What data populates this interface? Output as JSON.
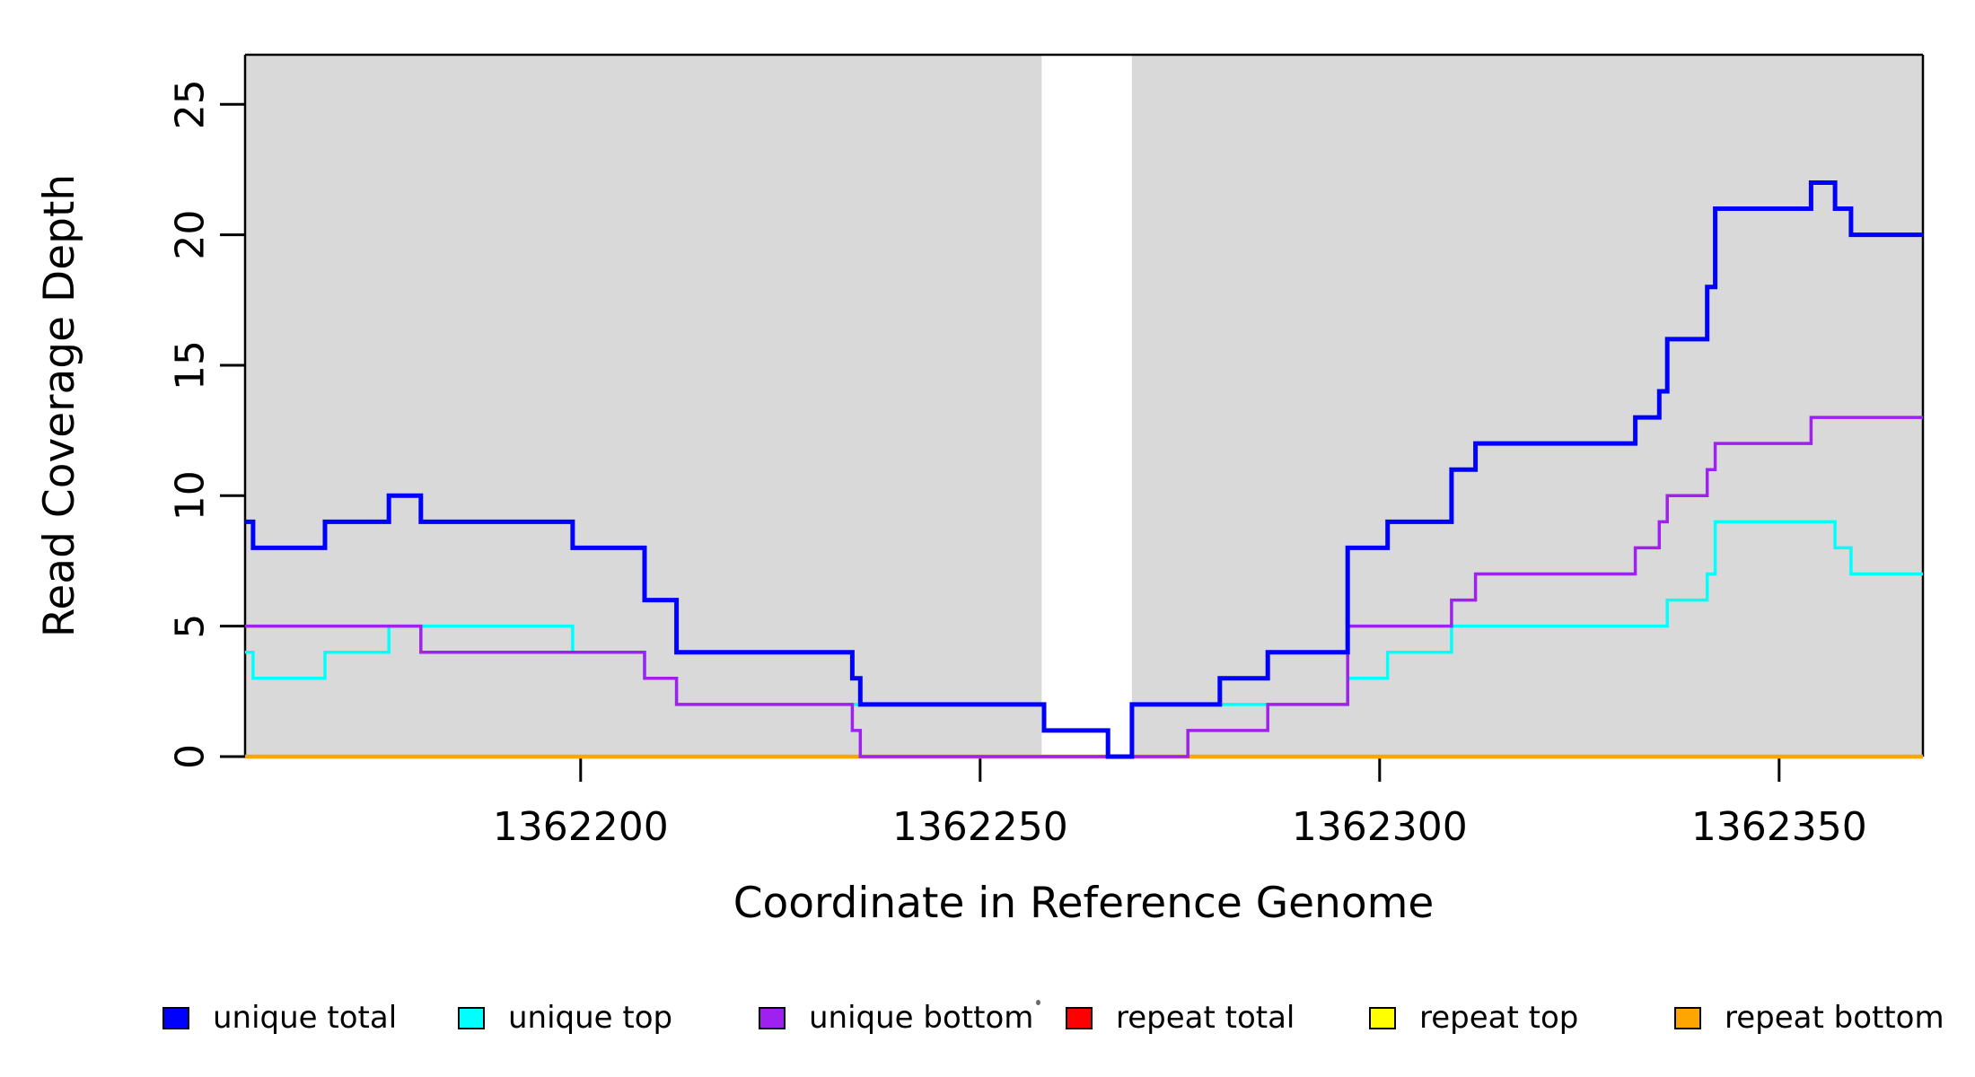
{
  "figure": {
    "background_color": "#FFFFFF",
    "plot_background_color": "#D9D9D9",
    "axis_color": "#000000"
  },
  "chart_data": {
    "type": "line",
    "line_style": "step-after",
    "title": "",
    "xlabel": "Coordinate in Reference Genome",
    "ylabel": "Read Coverage Depth",
    "xlim": [
      1362158,
      1362368
    ],
    "ylim": [
      0,
      26.9
    ],
    "x_ticks": [
      "1362200",
      "1362250",
      "1362300",
      "1362350"
    ],
    "x_tick_values": [
      1362200,
      1362250,
      1362300,
      1362350
    ],
    "y_ticks": [
      "0",
      "5",
      "10",
      "15",
      "20",
      "25"
    ],
    "y_tick_values": [
      0,
      5,
      10,
      15,
      20,
      25
    ],
    "grid": false,
    "legend_position": "bottom",
    "shaded_regions": [
      {
        "name": "unique-mappability-left",
        "x0": 1362158,
        "x1": 1362257.7,
        "color": "#D9D9D9"
      },
      {
        "name": "unique-mappability-right",
        "x0": 1362269,
        "x1": 1362368,
        "color": "#D9D9D9"
      }
    ],
    "unshaded_gap_region": {
      "x0": 1362257.7,
      "x1": 1362269,
      "color": "#FFFFFF"
    },
    "x_end": 1362368,
    "series": [
      {
        "name": "repeat total",
        "color": "#FF0000",
        "width": 3,
        "steps": [
          [
            1362158,
            0
          ]
        ]
      },
      {
        "name": "repeat top",
        "color": "#FFFF00",
        "width": 3,
        "steps": [
          [
            1362158,
            0
          ]
        ]
      },
      {
        "name": "repeat bottom",
        "color": "#FFA500",
        "width": 4.5,
        "steps": [
          [
            1362158,
            0
          ]
        ]
      },
      {
        "name": "unique top",
        "color": "#00FFFF",
        "width": 3.5,
        "steps": [
          [
            1362158,
            4
          ],
          [
            1362159,
            3
          ],
          [
            1362168,
            4
          ],
          [
            1362176,
            5
          ],
          [
            1362199,
            4
          ],
          [
            1362208,
            3
          ],
          [
            1362212,
            2
          ],
          [
            1362258,
            1
          ],
          [
            1362266,
            0
          ],
          [
            1362269,
            2
          ],
          [
            1362296,
            3
          ],
          [
            1362301,
            4
          ],
          [
            1362309,
            5
          ],
          [
            1362336,
            6
          ],
          [
            1362341,
            7
          ],
          [
            1362342,
            9
          ],
          [
            1362357,
            8
          ],
          [
            1362359,
            7
          ]
        ]
      },
      {
        "name": "unique bottom",
        "color": "#A020F0",
        "width": 3.5,
        "steps": [
          [
            1362158,
            5
          ],
          [
            1362180,
            4
          ],
          [
            1362208,
            3
          ],
          [
            1362212,
            2
          ],
          [
            1362234,
            1
          ],
          [
            1362235,
            0
          ],
          [
            1362276,
            1
          ],
          [
            1362286,
            2
          ],
          [
            1362296,
            5
          ],
          [
            1362309,
            6
          ],
          [
            1362312,
            7
          ],
          [
            1362332,
            8
          ],
          [
            1362335,
            9
          ],
          [
            1362336,
            10
          ],
          [
            1362341,
            11
          ],
          [
            1362342,
            12
          ],
          [
            1362354,
            13
          ]
        ]
      },
      {
        "name": "unique total",
        "color": "#0000FF",
        "width": 5,
        "steps": [
          [
            1362158,
            9
          ],
          [
            1362159,
            8
          ],
          [
            1362168,
            9
          ],
          [
            1362176,
            10
          ],
          [
            1362180,
            9
          ],
          [
            1362199,
            8
          ],
          [
            1362208,
            6
          ],
          [
            1362212,
            4
          ],
          [
            1362234,
            3
          ],
          [
            1362235,
            2
          ],
          [
            1362258,
            1
          ],
          [
            1362266,
            0
          ],
          [
            1362269,
            2
          ],
          [
            1362280,
            3
          ],
          [
            1362286,
            4
          ],
          [
            1362296,
            8
          ],
          [
            1362301,
            9
          ],
          [
            1362309,
            11
          ],
          [
            1362312,
            12
          ],
          [
            1362332,
            13
          ],
          [
            1362335,
            14
          ],
          [
            1362336,
            16
          ],
          [
            1362341,
            18
          ],
          [
            1362342,
            21
          ],
          [
            1362354,
            22
          ],
          [
            1362357,
            21
          ],
          [
            1362359,
            20
          ]
        ]
      }
    ]
  },
  "legend": {
    "items": [
      {
        "label": "unique total",
        "color": "#0000FF"
      },
      {
        "label": "unique top",
        "color": "#00FFFF"
      },
      {
        "label": "unique bottom",
        "color": "#A020F0"
      },
      {
        "label": "repeat total",
        "color": "#FF0000"
      },
      {
        "label": "repeat top",
        "color": "#FFFF00"
      },
      {
        "label": "repeat bottom",
        "color": "#FFA500"
      }
    ]
  }
}
